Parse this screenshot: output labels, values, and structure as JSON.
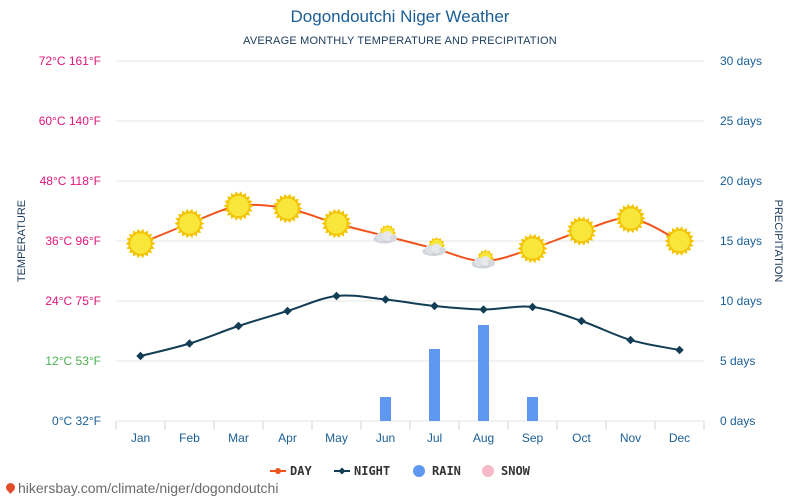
{
  "title": "Dogondoutchi Niger Weather",
  "subtitle": "AVERAGE MONTHLY TEMPERATURE AND PRECIPITATION",
  "footer": "hikersbay.com/climate/niger/dogondoutchi",
  "colors": {
    "day": "#f0541d",
    "night": "#123d55",
    "rain": "#5e98f1",
    "snow": "#f7b8c8",
    "grid": "#e6e6e6",
    "right_axis": "#1a5e96"
  },
  "chart_data": {
    "type": "line",
    "categories": [
      "Jan",
      "Feb",
      "Mar",
      "Apr",
      "May",
      "Jun",
      "Jul",
      "Aug",
      "Sep",
      "Oct",
      "Nov",
      "Dec"
    ],
    "y_left_label": "TEMPERATURE",
    "y_right_label": "PRECIPITATION",
    "y_left_range": [
      0,
      72
    ],
    "y_right_range": [
      0,
      30
    ],
    "y_left_ticks": [
      {
        "value": 0,
        "label": "0°C 32°F",
        "color": "#1a5e96"
      },
      {
        "value": 12,
        "label": "12°C 53°F",
        "color": "#4caf50"
      },
      {
        "value": 24,
        "label": "24°C 75°F",
        "color": "#e0157a"
      },
      {
        "value": 36,
        "label": "36°C 96°F",
        "color": "#e0157a"
      },
      {
        "value": 48,
        "label": "48°C 118°F",
        "color": "#e0157a"
      },
      {
        "value": 60,
        "label": "60°C 140°F",
        "color": "#e0157a"
      },
      {
        "value": 72,
        "label": "72°C 161°F",
        "color": "#e0157a"
      }
    ],
    "y_right_ticks": [
      {
        "value": 0,
        "label": "0 days"
      },
      {
        "value": 5,
        "label": "5 days"
      },
      {
        "value": 10,
        "label": "10 days"
      },
      {
        "value": 15,
        "label": "15 days"
      },
      {
        "value": 20,
        "label": "20 days"
      },
      {
        "value": 25,
        "label": "25 days"
      },
      {
        "value": 30,
        "label": "30 days"
      }
    ],
    "series": [
      {
        "name": "DAY",
        "type": "line",
        "axis": "left",
        "values": [
          35.5,
          39.5,
          43,
          42.5,
          39.5,
          37,
          34.5,
          32,
          34.5,
          38,
          40.5,
          36
        ]
      },
      {
        "name": "NIGHT",
        "type": "line",
        "axis": "left",
        "values": [
          13,
          15.5,
          19,
          22,
          25,
          24.3,
          23,
          22.3,
          22.8,
          20,
          16.2,
          14.2
        ]
      },
      {
        "name": "RAIN",
        "type": "bar",
        "axis": "right",
        "values": [
          0,
          0,
          0,
          0,
          0,
          2,
          6,
          8,
          2,
          0,
          0,
          0
        ]
      },
      {
        "name": "SNOW",
        "type": "bar",
        "axis": "right",
        "values": [
          0,
          0,
          0,
          0,
          0,
          0,
          0,
          0,
          0,
          0,
          0,
          0
        ]
      }
    ],
    "weather_icons": [
      "sunny",
      "sunny",
      "sunny",
      "sunny",
      "sunny",
      "partly-cloudy",
      "partly-cloudy",
      "partly-cloudy",
      "sunny",
      "sunny",
      "sunny",
      "sunny"
    ],
    "grid": true,
    "legend_position": "bottom-center"
  }
}
